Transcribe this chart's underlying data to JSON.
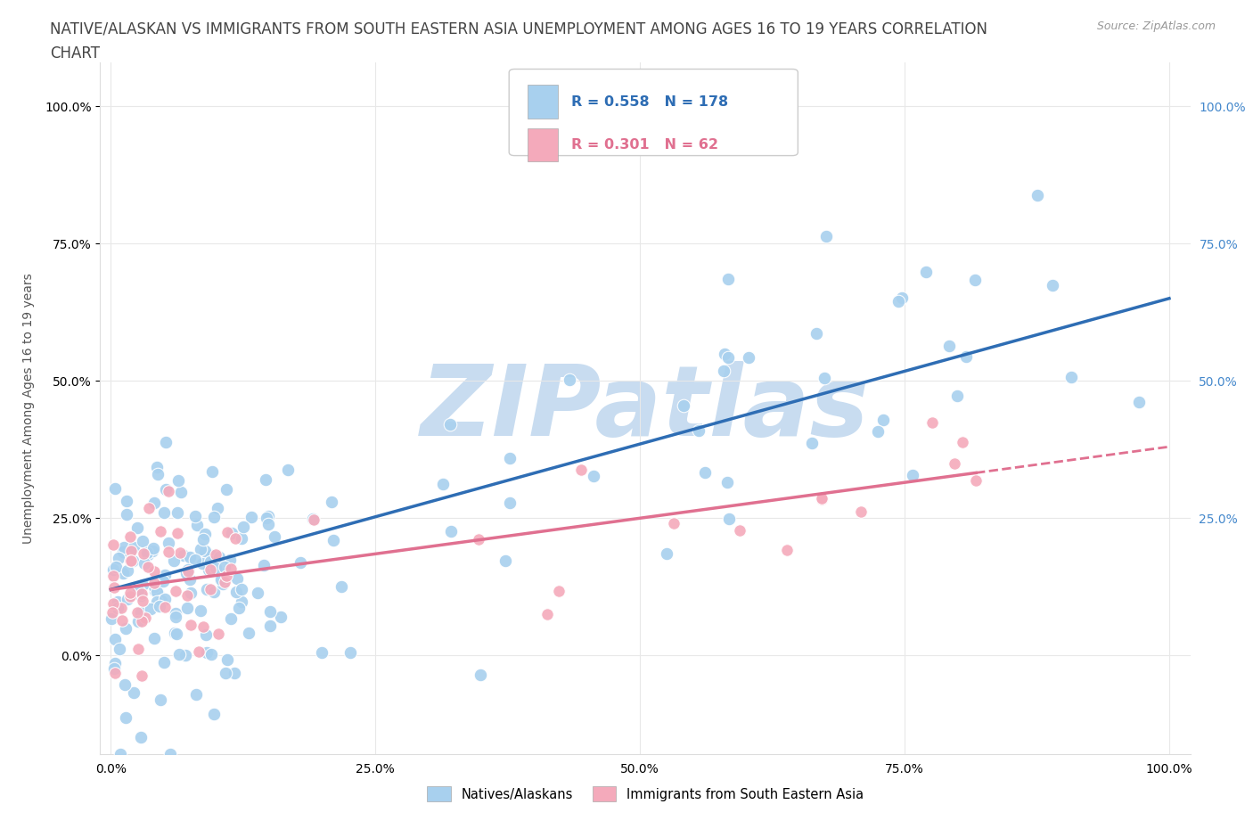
{
  "title_line1": "NATIVE/ALASKAN VS IMMIGRANTS FROM SOUTH EASTERN ASIA UNEMPLOYMENT AMONG AGES 16 TO 19 YEARS CORRELATION",
  "title_line2": "CHART",
  "source_text": "Source: ZipAtlas.com",
  "ylabel": "Unemployment Among Ages 16 to 19 years",
  "xlim": [
    0.0,
    1.0
  ],
  "ylim": [
    -0.05,
    1.05
  ],
  "blue_R": 0.558,
  "blue_N": 178,
  "pink_R": 0.301,
  "pink_N": 62,
  "blue_color": "#A8D0EE",
  "pink_color": "#F4AABB",
  "blue_line_color": "#2E6DB4",
  "pink_line_color": "#E07090",
  "right_tick_color": "#4488CC",
  "watermark_color": "#C8DCF0",
  "legend_label_blue": "Natives/Alaskans",
  "legend_label_pink": "Immigrants from South Eastern Asia",
  "background_color": "#FFFFFF",
  "grid_color": "#E8E8E8",
  "title_fontsize": 12,
  "axis_tick_fontsize": 10,
  "ylabel_fontsize": 10,
  "blue_line_intercept": 0.12,
  "blue_line_slope": 0.53,
  "pink_line_intercept": 0.12,
  "pink_line_slope": 0.26
}
